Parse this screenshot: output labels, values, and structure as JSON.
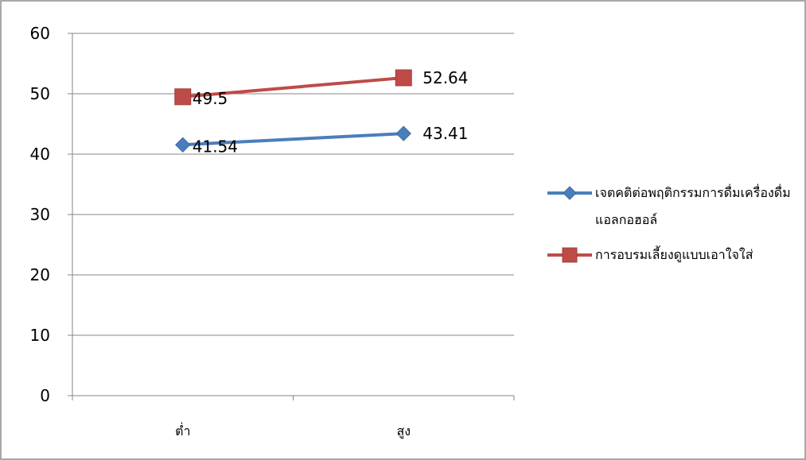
{
  "chart_data": {
    "type": "line",
    "categories": [
      "ต่ำ",
      "สูง"
    ],
    "series": [
      {
        "name": "เจตคติต่อพฤติกรรมการดื่มเครื่องดื่มแอลกอฮอล์",
        "values": [
          41.54,
          43.41
        ],
        "labels": [
          "41.54",
          "43.41"
        ],
        "color": "#4a7ebb",
        "marker": "diamond"
      },
      {
        "name": "การอบรมเลี้ยงดูแบบเอาใจใส่",
        "values": [
          49.5,
          52.64
        ],
        "labels": [
          "49.5",
          "52.64"
        ],
        "color": "#be4b48",
        "marker": "square"
      }
    ],
    "yticks": [
      "0",
      "10",
      "20",
      "30",
      "40",
      "50",
      "60"
    ],
    "ylim": [
      0,
      60
    ],
    "grid": true,
    "legend_position": "right"
  }
}
